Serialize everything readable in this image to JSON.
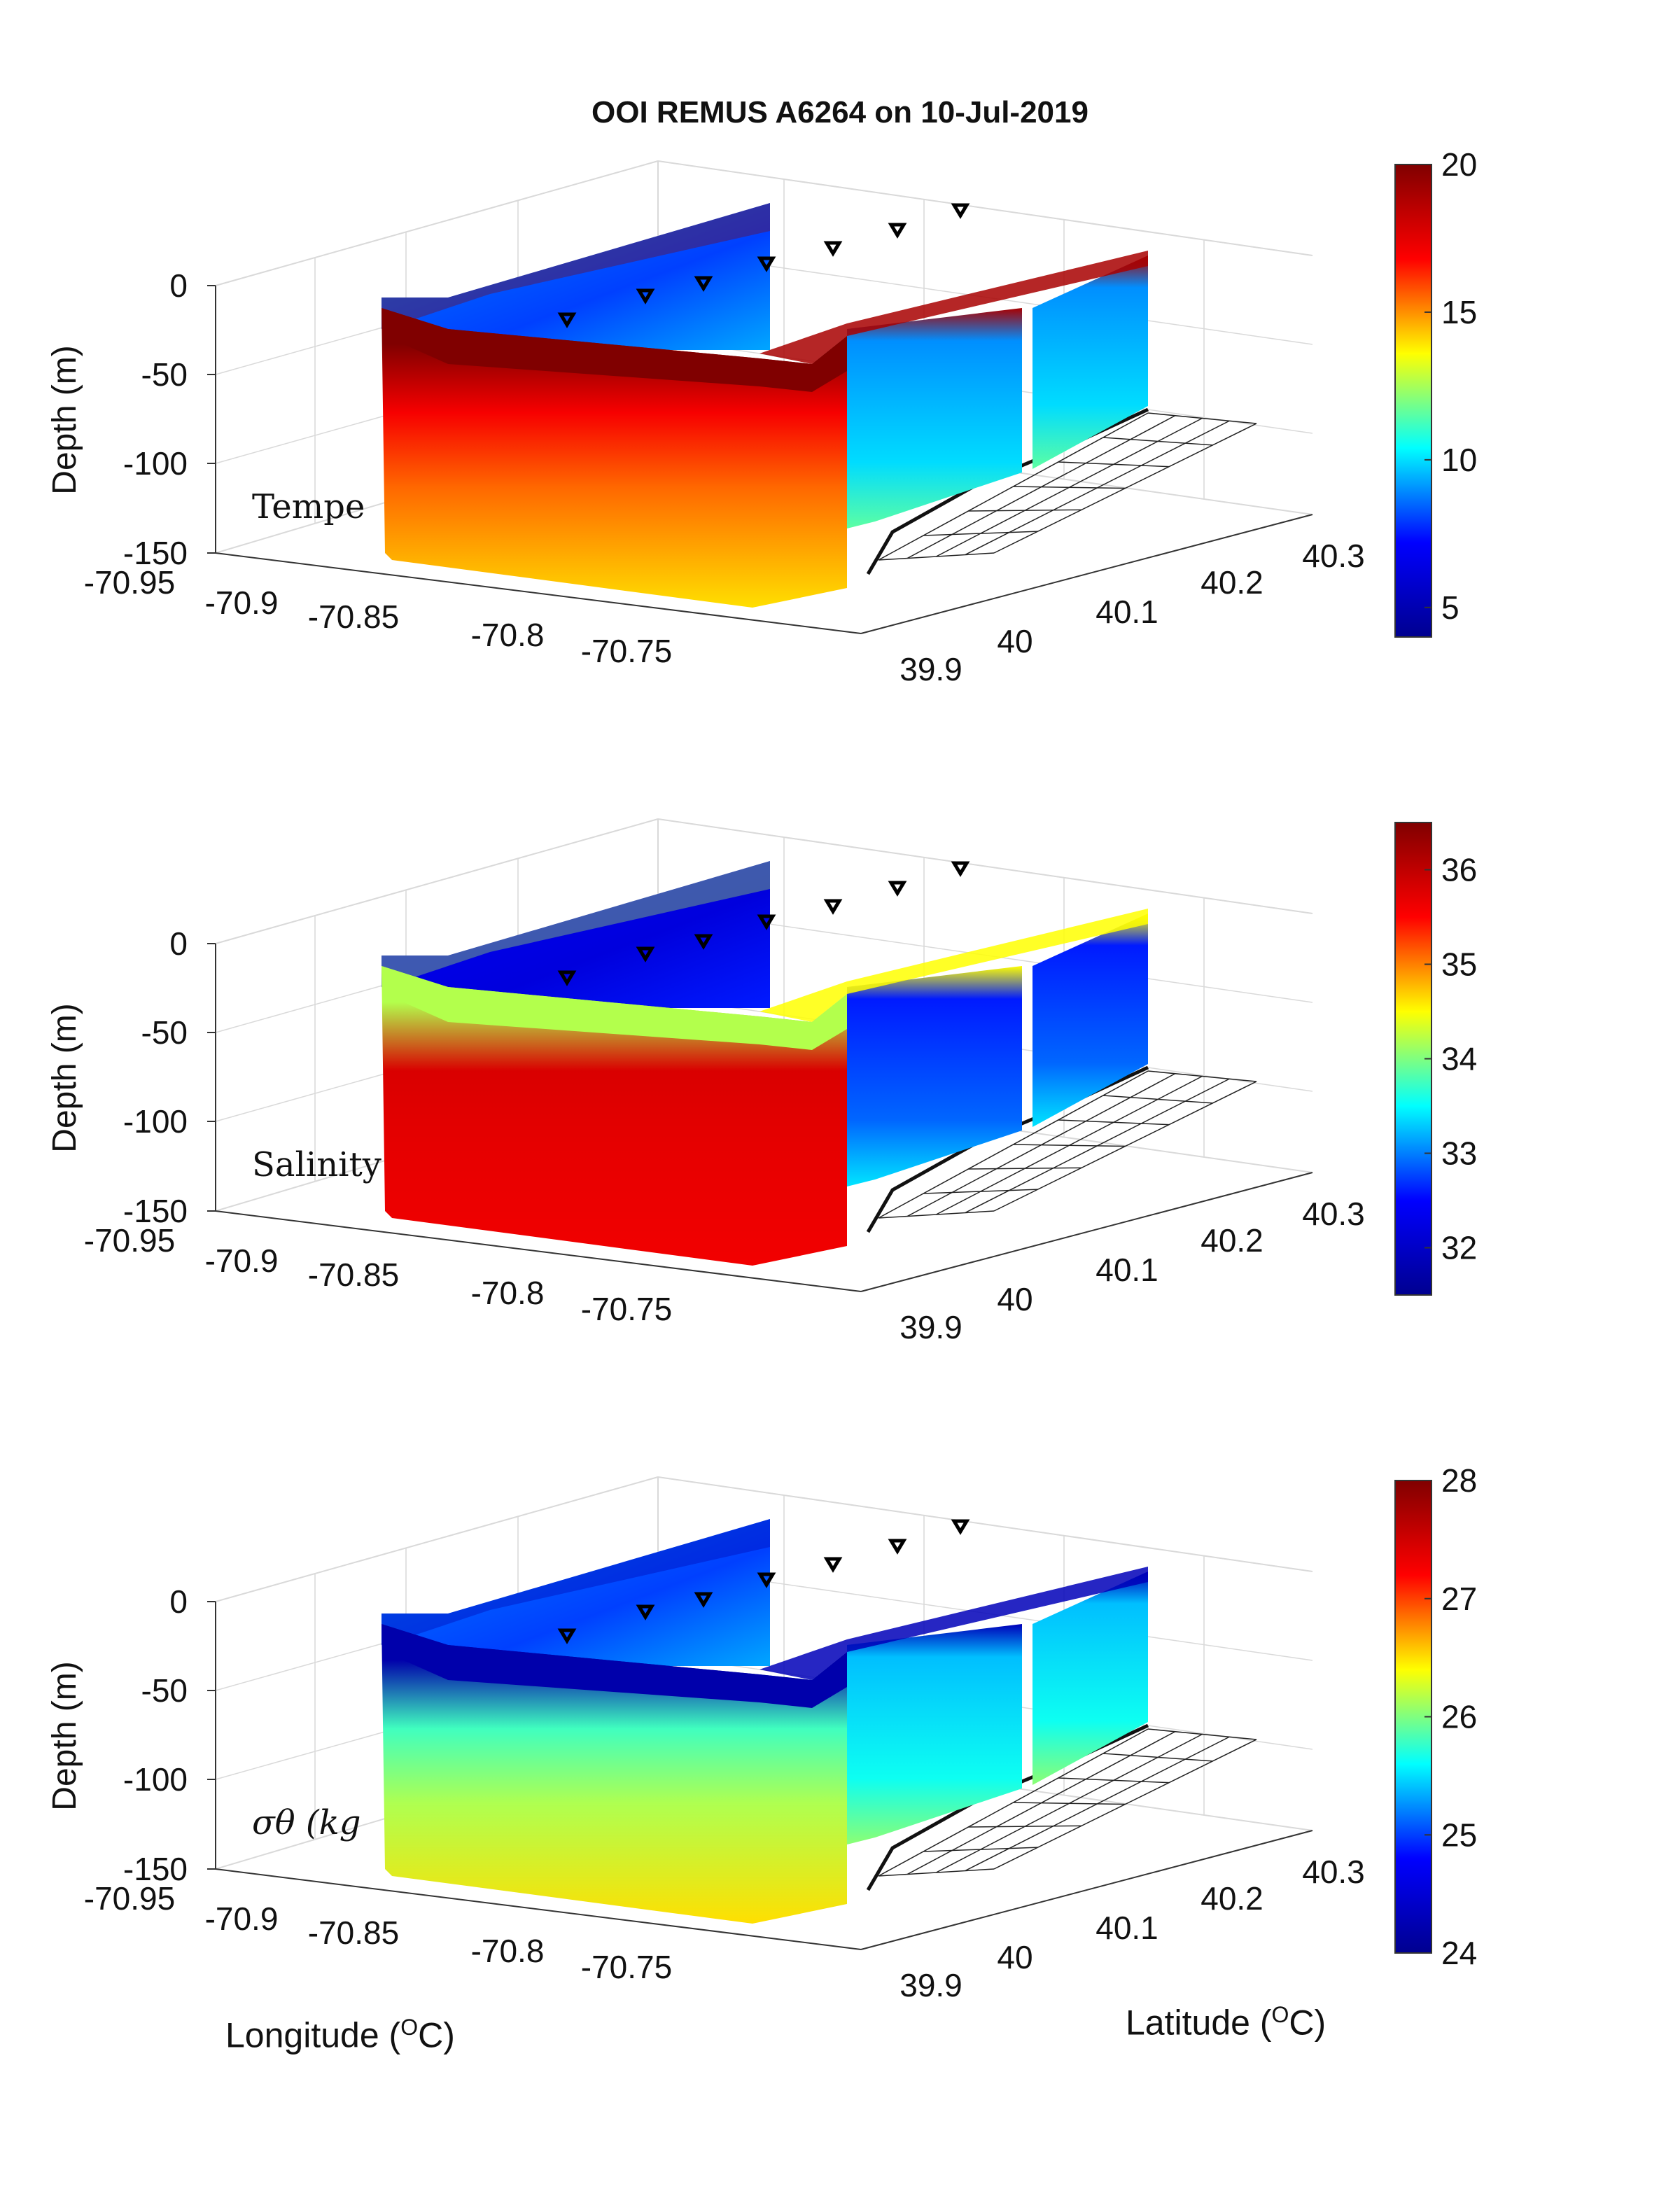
{
  "title": "OOI REMUS A6264 on 10-Jul-2019",
  "xlabel": "Longitude",
  "xlabel_unit_sup": "O",
  "xlabel_unit": "C",
  "ylabel_lat": "Latitude",
  "ylabel_lat_unit_sup": "O",
  "ylabel_lat_unit": "C",
  "colormap": [
    "#00008f",
    "#0000ff",
    "#00ffff",
    "#ffff00",
    "#ff0000",
    "#800000"
  ],
  "grid_color": "#d9d9d9",
  "chart_data": [
    {
      "type": "heatmap",
      "subplot_label": "Tempe",
      "zlabel": "Depth (m)",
      "zticks": [
        0,
        -50,
        -100,
        -150
      ],
      "longitude_ticks": [
        -70.95,
        -70.9,
        -70.85,
        -70.8,
        -70.75
      ],
      "latitude_ticks": [
        39.9,
        40,
        40.1,
        40.2,
        40.3
      ],
      "colorbar": {
        "min": 4,
        "max": 20,
        "ticks": [
          5,
          10,
          15,
          20
        ]
      },
      "surface_value": 20,
      "mid_value": 17,
      "deep_value": 14,
      "offshore_section_value": 9,
      "offshore_surface_value": 19,
      "back_section_value": 8
    },
    {
      "type": "heatmap",
      "subplot_label": "Salinity",
      "zlabel": "Depth (m)",
      "zticks": [
        0,
        -50,
        -100,
        -150
      ],
      "longitude_ticks": [
        -70.95,
        -70.9,
        -70.85,
        -70.8,
        -70.75
      ],
      "latitude_ticks": [
        39.9,
        40,
        40.1,
        40.2,
        40.3
      ],
      "colorbar": {
        "min": 31.5,
        "max": 36.5,
        "ticks": [
          32,
          33,
          34,
          35,
          36
        ]
      },
      "surface_value": 34.2,
      "mid_value": 35.8,
      "deep_value": 35.6,
      "offshore_section_value": 32.6,
      "offshore_surface_value": 34.5,
      "back_section_value": 32.2
    },
    {
      "type": "heatmap",
      "subplot_label": "σθ (kg",
      "zlabel": "Depth (m)",
      "zticks": [
        0,
        -50,
        -100,
        -150
      ],
      "longitude_ticks": [
        -70.95,
        -70.9,
        -70.85,
        -70.8,
        -70.75
      ],
      "latitude_ticks": [
        39.9,
        40,
        40.1,
        40.2,
        40.3
      ],
      "colorbar": {
        "min": 24,
        "max": 28,
        "ticks": [
          24,
          25,
          26,
          27,
          28
        ]
      },
      "surface_value": 24.2,
      "mid_value": 25.8,
      "deep_value": 26.5,
      "offshore_section_value": 25.4,
      "offshore_surface_value": 24.3,
      "back_section_value": 25.0
    }
  ]
}
